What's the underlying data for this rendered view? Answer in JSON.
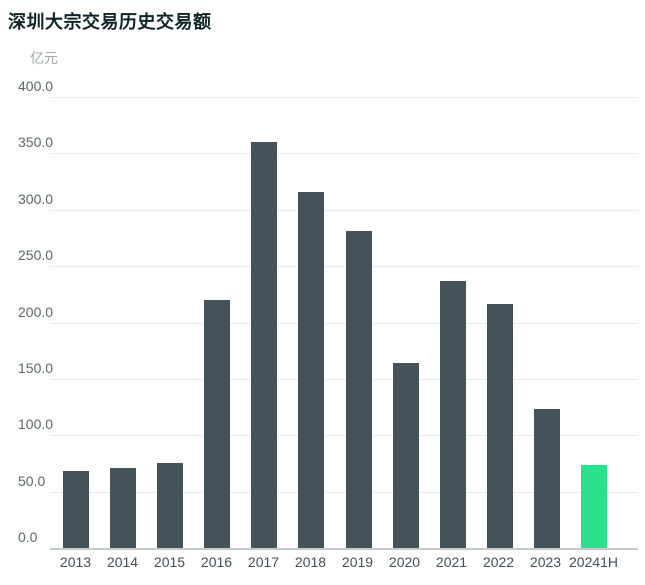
{
  "title": "深圳大宗交易历史交易额",
  "unit_label": "亿元",
  "colors": {
    "bar_default": "#44525A",
    "bar_highlight": "#2BDF8D",
    "gridline": "#eaeded",
    "baseline": "#c3cacb",
    "title_text": "#0f2426",
    "ytick_text": "#5b676c",
    "xtick_text": "#434f57",
    "background": "#ffffff"
  },
  "chart_data": {
    "type": "bar",
    "title": "深圳大宗交易历史交易额",
    "ylabel": "亿元",
    "xlabel": "",
    "categories": [
      "2013",
      "2014",
      "2015",
      "2016",
      "2017",
      "2018",
      "2019",
      "2020",
      "2021",
      "2022",
      "2023",
      "20241H"
    ],
    "values": [
      68,
      71,
      75,
      220,
      360,
      316,
      281,
      164,
      237,
      216,
      123,
      74
    ],
    "highlight_index": 11,
    "ylim": [
      0,
      400
    ],
    "ytick_step": 50,
    "ytick_labels": [
      "400.0",
      "350.0",
      "300.0",
      "250.0",
      "200.0",
      "150.0",
      "100.0",
      "50.0",
      "0.0"
    ],
    "grid": true,
    "legend": "none"
  }
}
